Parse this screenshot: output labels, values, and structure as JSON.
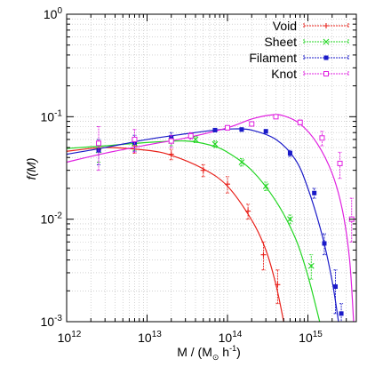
{
  "chart_data": {
    "type": "scatter",
    "xlabel": {
      "main": "M  / (M",
      "sub": "⊙",
      "tail": " h",
      "sup": "-1",
      "close": ")"
    },
    "ylabel": "f(M)",
    "xscale": "log",
    "yscale": "log",
    "xlim": [
      1000000000000.0,
      4000000000000000.0
    ],
    "ylim": [
      0.001,
      1
    ],
    "grid": true,
    "legend_position": "top-right",
    "x_ticks": [
      {
        "value": 1000000000000.0,
        "base": "10",
        "exp": "12"
      },
      {
        "value": 10000000000000.0,
        "base": "10",
        "exp": "13"
      },
      {
        "value": 100000000000000.0,
        "base": "10",
        "exp": "14"
      },
      {
        "value": 1000000000000000.0,
        "base": "10",
        "exp": "15"
      }
    ],
    "y_ticks": [
      {
        "value": 1,
        "base": "10",
        "exp": "0"
      },
      {
        "value": 0.1,
        "base": "10",
        "exp": "-1"
      },
      {
        "value": 0.01,
        "base": "10",
        "exp": "-2"
      },
      {
        "value": 0.001,
        "base": "10",
        "exp": "-3"
      }
    ],
    "series": [
      {
        "name": "Void",
        "color": "#e8211a",
        "marker": "plus",
        "points": [
          {
            "x": 2500000000000.0,
            "y": 0.048,
            "lo": 0.036,
            "hi": 0.06
          },
          {
            "x": 7000000000000.0,
            "y": 0.052,
            "lo": 0.044,
            "hi": 0.06
          },
          {
            "x": 20000000000000.0,
            "y": 0.043,
            "lo": 0.038,
            "hi": 0.048
          },
          {
            "x": 50000000000000.0,
            "y": 0.03,
            "lo": 0.026,
            "hi": 0.034
          },
          {
            "x": 100000000000000.0,
            "y": 0.022,
            "lo": 0.018,
            "hi": 0.026
          },
          {
            "x": 180000000000000.0,
            "y": 0.012,
            "lo": 0.01,
            "hi": 0.014
          },
          {
            "x": 280000000000000.0,
            "y": 0.0045,
            "lo": 0.0032,
            "hi": 0.006
          },
          {
            "x": 420000000000000.0,
            "y": 0.0023,
            "lo": 0.0015,
            "hi": 0.0032
          }
        ],
        "curve": [
          [
            1000000000000.0,
            0.046
          ],
          [
            3000000000000.0,
            0.05
          ],
          [
            10000000000000.0,
            0.047
          ],
          [
            20000000000000.0,
            0.042
          ],
          [
            50000000000000.0,
            0.031
          ],
          [
            100000000000000.0,
            0.021
          ],
          [
            200000000000000.0,
            0.0098
          ],
          [
            300000000000000.0,
            0.005
          ],
          [
            400000000000000.0,
            0.0023
          ],
          [
            500000000000000.0,
            0.001
          ]
        ]
      },
      {
        "name": "Sheet",
        "color": "#22d622",
        "marker": "cross",
        "points": [
          {
            "x": 2500000000000.0,
            "y": 0.047,
            "lo": 0.036,
            "hi": 0.06
          },
          {
            "x": 7000000000000.0,
            "y": 0.055,
            "lo": 0.047,
            "hi": 0.063
          },
          {
            "x": 20000000000000.0,
            "y": 0.058,
            "lo": 0.052,
            "hi": 0.064
          },
          {
            "x": 40000000000000.0,
            "y": 0.06,
            "lo": 0.056,
            "hi": 0.064
          },
          {
            "x": 70000000000000.0,
            "y": 0.054,
            "lo": 0.05,
            "hi": 0.058
          },
          {
            "x": 150000000000000.0,
            "y": 0.036,
            "lo": 0.033,
            "hi": 0.039
          },
          {
            "x": 300000000000000.0,
            "y": 0.021,
            "lo": 0.019,
            "hi": 0.023
          },
          {
            "x": 600000000000000.0,
            "y": 0.01,
            "lo": 0.009,
            "hi": 0.011
          },
          {
            "x": 1100000000000000.0,
            "y": 0.0035,
            "lo": 0.0026,
            "hi": 0.0045
          }
        ],
        "curve": [
          [
            1000000000000.0,
            0.049
          ],
          [
            3000000000000.0,
            0.052
          ],
          [
            10000000000000.0,
            0.056
          ],
          [
            30000000000000.0,
            0.058
          ],
          [
            60000000000000.0,
            0.053
          ],
          [
            100000000000000.0,
            0.045
          ],
          [
            200000000000000.0,
            0.03
          ],
          [
            400000000000000.0,
            0.015
          ],
          [
            700000000000000.0,
            0.0065
          ],
          [
            1000000000000000.0,
            0.0028
          ],
          [
            1400000000000000.0,
            0.001
          ]
        ]
      },
      {
        "name": "Filament",
        "color": "#1a1ac8",
        "marker": "filled-square",
        "points": [
          {
            "x": 2500000000000.0,
            "y": 0.047,
            "lo": 0.034,
            "hi": 0.06
          },
          {
            "x": 7000000000000.0,
            "y": 0.056,
            "lo": 0.046,
            "hi": 0.066
          },
          {
            "x": 20000000000000.0,
            "y": 0.063,
            "lo": 0.056,
            "hi": 0.07
          },
          {
            "x": 35000000000000.0,
            "y": 0.065,
            "lo": 0.062,
            "hi": 0.068
          },
          {
            "x": 70000000000000.0,
            "y": 0.074,
            "lo": 0.071,
            "hi": 0.077
          },
          {
            "x": 150000000000000.0,
            "y": 0.075,
            "lo": 0.072,
            "hi": 0.078
          },
          {
            "x": 300000000000000.0,
            "y": 0.072,
            "lo": 0.069,
            "hi": 0.075
          },
          {
            "x": 600000000000000.0,
            "y": 0.044,
            "lo": 0.041,
            "hi": 0.047
          },
          {
            "x": 1200000000000000.0,
            "y": 0.018,
            "lo": 0.016,
            "hi": 0.02
          },
          {
            "x": 1600000000000000.0,
            "y": 0.0058,
            "lo": 0.0045,
            "hi": 0.0072
          },
          {
            "x": 2200000000000000.0,
            "y": 0.0022,
            "lo": 0.0012,
            "hi": 0.0032
          },
          {
            "x": 2600000000000000.0,
            "y": 0.0012,
            "lo": 0.0009,
            "hi": 0.0015
          }
        ],
        "curve": [
          [
            1000000000000.0,
            0.043
          ],
          [
            3000000000000.0,
            0.05
          ],
          [
            10000000000000.0,
            0.06
          ],
          [
            30000000000000.0,
            0.068
          ],
          [
            70000000000000.0,
            0.074
          ],
          [
            120000000000000.0,
            0.076
          ],
          [
            200000000000000.0,
            0.074
          ],
          [
            400000000000000.0,
            0.06
          ],
          [
            700000000000000.0,
            0.038
          ],
          [
            1000000000000000.0,
            0.02
          ],
          [
            1500000000000000.0,
            0.007
          ],
          [
            2000000000000000.0,
            0.0025
          ],
          [
            2400000000000000.0,
            0.001
          ]
        ]
      },
      {
        "name": "Knot",
        "color": "#e020e0",
        "marker": "open-square",
        "points": [
          {
            "x": 2500000000000.0,
            "y": 0.055,
            "lo": 0.03,
            "hi": 0.08
          },
          {
            "x": 7000000000000.0,
            "y": 0.06,
            "lo": 0.045,
            "hi": 0.075
          },
          {
            "x": 20000000000000.0,
            "y": 0.058,
            "lo": 0.05,
            "hi": 0.066
          },
          {
            "x": 35000000000000.0,
            "y": 0.065,
            "lo": 0.06,
            "hi": 0.07
          },
          {
            "x": 100000000000000.0,
            "y": 0.078,
            "lo": 0.074,
            "hi": 0.082
          },
          {
            "x": 200000000000000.0,
            "y": 0.085,
            "lo": 0.081,
            "hi": 0.089
          },
          {
            "x": 400000000000000.0,
            "y": 0.1,
            "lo": 0.096,
            "hi": 0.104
          },
          {
            "x": 800000000000000.0,
            "y": 0.088,
            "lo": 0.083,
            "hi": 0.093
          },
          {
            "x": 1500000000000000.0,
            "y": 0.062,
            "lo": 0.052,
            "hi": 0.072
          },
          {
            "x": 2500000000000000.0,
            "y": 0.035,
            "lo": 0.025,
            "hi": 0.045
          },
          {
            "x": 3500000000000000.0,
            "y": 0.01,
            "lo": 0.006,
            "hi": 0.016
          }
        ],
        "curve": [
          [
            1000000000000.0,
            0.036
          ],
          [
            3000000000000.0,
            0.044
          ],
          [
            10000000000000.0,
            0.053
          ],
          [
            30000000000000.0,
            0.062
          ],
          [
            100000000000000.0,
            0.078
          ],
          [
            200000000000000.0,
            0.095
          ],
          [
            350000000000000.0,
            0.104
          ],
          [
            500000000000000.0,
            0.102
          ],
          [
            800000000000000.0,
            0.085
          ],
          [
            1300000000000000.0,
            0.055
          ],
          [
            2000000000000000.0,
            0.028
          ],
          [
            2700000000000000.0,
            0.012
          ],
          [
            3300000000000000.0,
            0.004
          ],
          [
            3700000000000000.0,
            0.001
          ]
        ]
      }
    ]
  }
}
